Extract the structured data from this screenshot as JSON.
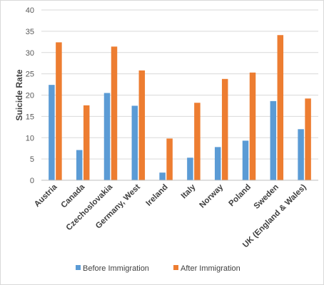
{
  "chart_data": {
    "type": "bar",
    "title": "",
    "xlabel": "",
    "ylabel": "Suicide Rate",
    "ylim": [
      0,
      40
    ],
    "yticks": [
      0,
      5,
      10,
      15,
      20,
      25,
      30,
      35,
      40
    ],
    "grid": "horizontal",
    "legend": "bottom",
    "categories": [
      "Austria",
      "Canada",
      "Czechoslovakia",
      "Germany, West",
      "Ireland",
      "Italy",
      "Norway",
      "Poland",
      "Sweden",
      "UK (England & Wales)"
    ],
    "series": [
      {
        "name": "Before Immigration",
        "color": "#5b9bd5",
        "values": [
          22.4,
          7.1,
          20.5,
          17.5,
          1.8,
          5.3,
          7.8,
          9.3,
          18.6,
          12.0
        ]
      },
      {
        "name": "After Immigration",
        "color": "#ed7d31",
        "values": [
          32.4,
          17.6,
          31.4,
          25.8,
          9.8,
          18.2,
          23.8,
          25.3,
          34.1,
          19.2
        ]
      }
    ]
  }
}
